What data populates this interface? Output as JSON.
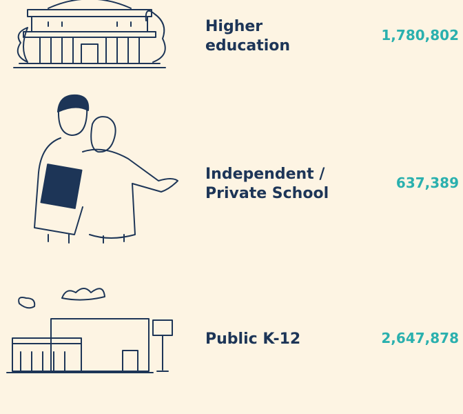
{
  "items": [
    {
      "label_lines": [
        "Higher",
        "education"
      ],
      "value": "1,780,802"
    },
    {
      "label_lines": [
        "Independent /",
        "Private School"
      ],
      "value": "637,389"
    },
    {
      "label_lines": [
        "Public K-12"
      ],
      "value": "2,647,878"
    }
  ]
}
